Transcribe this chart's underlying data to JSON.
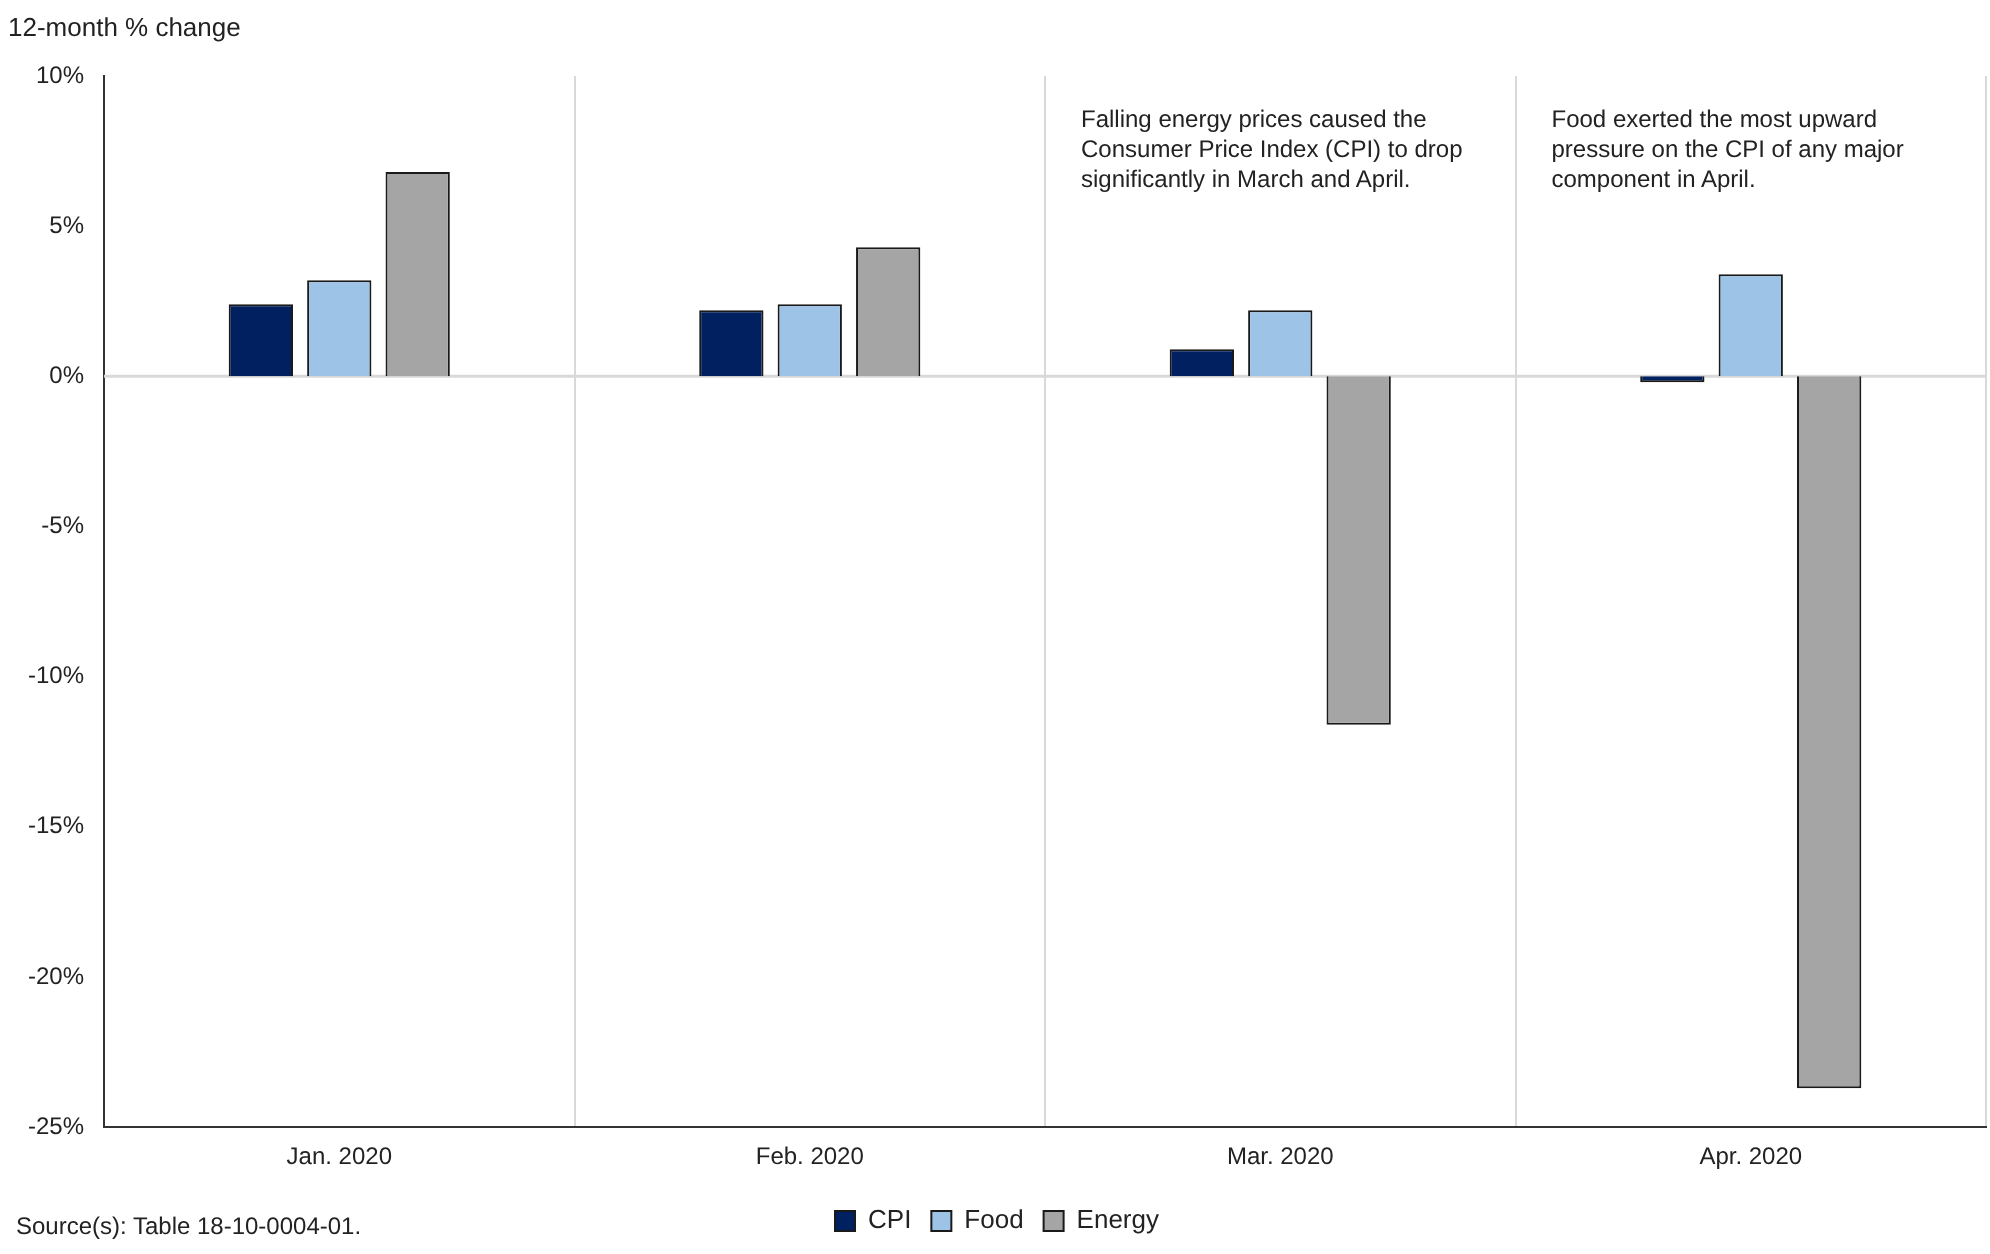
{
  "chart_data": {
    "type": "bar",
    "ylabel": "12-month % change",
    "categories": [
      "Jan. 2020",
      "Feb. 2020",
      "Mar. 2020",
      "Apr. 2020"
    ],
    "series": [
      {
        "name": "CPI",
        "color": "#002060",
        "values": [
          2.4,
          2.2,
          0.9,
          -0.2
        ]
      },
      {
        "name": "Food",
        "color": "#9dc3e6",
        "values": [
          3.2,
          2.4,
          2.2,
          3.4
        ]
      },
      {
        "name": "Energy",
        "color": "#a5a5a5",
        "values": [
          6.8,
          4.3,
          -11.6,
          -23.7
        ]
      }
    ],
    "ylim": [
      -25,
      10
    ],
    "yticks": [
      {
        "value": -25,
        "label": "-25%"
      },
      {
        "value": -20,
        "label": "-20%"
      },
      {
        "value": -15,
        "label": "-15%"
      },
      {
        "value": -10,
        "label": "-10%"
      },
      {
        "value": -5,
        "label": "-5%"
      },
      {
        "value": 0,
        "label": "0%"
      },
      {
        "value": 5,
        "label": "5%"
      },
      {
        "value": 10,
        "label": "10%"
      }
    ],
    "grid": "x",
    "legend": "bottom",
    "ref_lines": [
      {
        "axis": "y",
        "value": 0,
        "color": "#d9d9d9"
      }
    ],
    "annotations": [
      "Falling energy prices caused the Consumer Price Index (CPI) to drop significantly in March and April.",
      "Food exerted the most upward pressure on the CPI of any major component in April.",
      "Source(s): Table 18-10-0004-01."
    ]
  }
}
